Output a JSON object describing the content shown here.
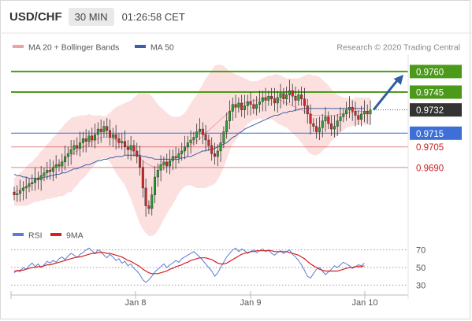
{
  "header": {
    "symbol": "USD/CHF",
    "timeframe": "30 MIN",
    "timestamp": "01:26:58 CET"
  },
  "main_legend": {
    "ma20": "MA 20 + Bollinger Bands",
    "ma50": "MA 50",
    "credit": "Research © 2020 Trading Central"
  },
  "rsi_legend": {
    "rsi": "RSI",
    "ma9": "9MA"
  },
  "colors": {
    "up": "#2ca02c",
    "down": "#d62728",
    "bollinger_fill": "#fbd5d5",
    "ma20": "#f4a0a0",
    "ma50": "#3b5ea8",
    "green_level": "#4c9a1a",
    "blue_level": "#3d6fd6",
    "red_level": "#c82020",
    "last_price": "#333333",
    "arrow": "#2e5f9e",
    "rsi": "#5b7bd5",
    "rsi_ma": "#d42020"
  },
  "chart_data": {
    "type": "candlestick",
    "price_range": [
      0.9648,
      0.9772
    ],
    "x_labels": [
      "Jan 8",
      "Jan 9",
      "Jan 10"
    ],
    "levels": [
      {
        "label": "0.9760",
        "value": 0.976,
        "kind": "resistance"
      },
      {
        "label": "0.9745",
        "value": 0.9745,
        "kind": "resistance"
      },
      {
        "label": "0.9732",
        "value": 0.9732,
        "kind": "last"
      },
      {
        "label": "0.9715",
        "value": 0.9715,
        "kind": "pivot"
      },
      {
        "label": "0.9705",
        "value": 0.9705,
        "kind": "support"
      },
      {
        "label": "0.9690",
        "value": 0.969,
        "kind": "support"
      }
    ],
    "close": [
      0.967,
      0.9671,
      0.9673,
      0.9675,
      0.9676,
      0.9678,
      0.9679,
      0.9682,
      0.9681,
      0.9684,
      0.9686,
      0.9688,
      0.9687,
      0.969,
      0.9692,
      0.9691,
      0.9694,
      0.9698,
      0.97,
      0.9703,
      0.9706,
      0.9704,
      0.9708,
      0.9711,
      0.9709,
      0.9713,
      0.971,
      0.9714,
      0.9718,
      0.9716,
      0.972,
      0.9717,
      0.9712,
      0.9714,
      0.9711,
      0.9708,
      0.9709,
      0.9705,
      0.9703,
      0.9706,
      0.9702,
      0.9698,
      0.969,
      0.9675,
      0.9662,
      0.966,
      0.967,
      0.9683,
      0.9688,
      0.9692,
      0.9694,
      0.9691,
      0.9695,
      0.9698,
      0.9697,
      0.97,
      0.9702,
      0.9705,
      0.9708,
      0.971,
      0.9712,
      0.9716,
      0.9718,
      0.9714,
      0.971,
      0.9706,
      0.97,
      0.9698,
      0.9702,
      0.9708,
      0.9716,
      0.9724,
      0.9731,
      0.9736,
      0.9734,
      0.9737,
      0.9732,
      0.9735,
      0.9738,
      0.9736,
      0.9733,
      0.9736,
      0.9738,
      0.9741,
      0.9739,
      0.9742,
      0.974,
      0.9737,
      0.9741,
      0.9744,
      0.974,
      0.9743,
      0.9746,
      0.9742,
      0.9739,
      0.9743,
      0.974,
      0.9735,
      0.9729,
      0.9722,
      0.972,
      0.9716,
      0.9719,
      0.9724,
      0.9727,
      0.9722,
      0.9718,
      0.972,
      0.9724,
      0.9727,
      0.9729,
      0.9732,
      0.9734,
      0.9731,
      0.9728,
      0.9725,
      0.9729,
      0.9731,
      0.9729,
      0.9732
    ],
    "ma20": [
      0.9672,
      0.9673,
      0.9674,
      0.9675,
      0.9676,
      0.9678,
      0.9679,
      0.9681,
      0.9682,
      0.9684,
      0.9685,
      0.9687,
      0.9688,
      0.969,
      0.9691,
      0.9693,
      0.9694,
      0.9696,
      0.9698,
      0.9699,
      0.9701,
      0.9702,
      0.9704,
      0.9705,
      0.9706,
      0.9708,
      0.9709,
      0.971,
      0.9711,
      0.9712,
      0.9712,
      0.9712,
      0.9712,
      0.9711,
      0.971,
      0.9709,
      0.9708,
      0.9707,
      0.9705,
      0.9703,
      0.9701,
      0.9699,
      0.9697,
      0.9695,
      0.9693,
      0.9692,
      0.9691,
      0.969,
      0.969,
      0.9691,
      0.9692,
      0.9693,
      0.9694,
      0.9695,
      0.9697,
      0.9699,
      0.9701,
      0.9703,
      0.9705,
      0.9707,
      0.9708,
      0.9709,
      0.9711,
      0.9713,
      0.9715,
      0.9717,
      0.9719,
      0.9721,
      0.9723,
      0.9725,
      0.9727,
      0.9729,
      0.9731,
      0.9733,
      0.9734,
      0.9735,
      0.9736,
      0.9737,
      0.9738,
      0.9738,
      0.9739,
      0.9739,
      0.974,
      0.974,
      0.9741,
      0.9741,
      0.9741,
      0.9741,
      0.974,
      0.9739,
      0.9738,
      0.9737,
      0.9736,
      0.9735,
      0.9734,
      0.9733,
      0.9732,
      0.9731,
      0.973,
      0.9729,
      0.9728,
      0.9728,
      0.9728,
      0.9728,
      0.9728,
      0.9728,
      0.9728,
      0.9728,
      0.9728,
      0.9729,
      0.9729,
      0.973,
      0.973,
      0.973,
      0.9731,
      0.9731,
      0.9731,
      0.9731,
      0.9731,
      0.9731
    ],
    "band_width": [
      0.001,
      0.0011,
      0.0012,
      0.0013,
      0.0014,
      0.0015,
      0.0015,
      0.0016,
      0.0017,
      0.0018,
      0.0019,
      0.002,
      0.0021,
      0.0022,
      0.0023,
      0.0024,
      0.0025,
      0.0026,
      0.0026,
      0.0027,
      0.0026,
      0.0025,
      0.0024,
      0.0023,
      0.0022,
      0.0021,
      0.0019,
      0.0018,
      0.0017,
      0.0016,
      0.0015,
      0.0016,
      0.0018,
      0.0021,
      0.0024,
      0.0026,
      0.0028,
      0.003,
      0.0033,
      0.0036,
      0.004,
      0.0044,
      0.0048,
      0.005,
      0.0051,
      0.0052,
      0.0051,
      0.0049,
      0.0046,
      0.0043,
      0.004,
      0.0037,
      0.0034,
      0.0032,
      0.003,
      0.0028,
      0.0027,
      0.0027,
      0.0028,
      0.003,
      0.0032,
      0.0034,
      0.0036,
      0.0038,
      0.004,
      0.0041,
      0.0042,
      0.0043,
      0.0042,
      0.004,
      0.0037,
      0.0033,
      0.0029,
      0.0026,
      0.0024,
      0.0022,
      0.002,
      0.0018,
      0.0016,
      0.0015,
      0.0014,
      0.0014,
      0.0014,
      0.0015,
      0.0015,
      0.0016,
      0.0016,
      0.0017,
      0.0018,
      0.0018,
      0.0018,
      0.0018,
      0.0019,
      0.002,
      0.0021,
      0.0022,
      0.0024,
      0.0026,
      0.0028,
      0.0029,
      0.0029,
      0.0029,
      0.0028,
      0.0026,
      0.0024,
      0.0022,
      0.0019,
      0.0017,
      0.0015,
      0.0013,
      0.0012,
      0.0011,
      0.001,
      0.001,
      0.001,
      0.001,
      0.001,
      0.001,
      0.001,
      0.001
    ],
    "ma50": [
      0.9685,
      0.9684,
      0.9684,
      0.9683,
      0.9683,
      0.9682,
      0.9682,
      0.9682,
      0.9682,
      0.9682,
      0.9683,
      0.9683,
      0.9684,
      0.9684,
      0.9685,
      0.9685,
      0.9686,
      0.9686,
      0.9687,
      0.9688,
      0.9689,
      0.9689,
      0.969,
      0.9691,
      0.9692,
      0.9692,
      0.9693,
      0.9694,
      0.9695,
      0.9695,
      0.9696,
      0.9696,
      0.9697,
      0.9697,
      0.9698,
      0.9698,
      0.9698,
      0.9699,
      0.9699,
      0.9699,
      0.9699,
      0.9699,
      0.9699,
      0.9698,
      0.9698,
      0.9697,
      0.9697,
      0.9696,
      0.9696,
      0.9696,
      0.9696,
      0.9696,
      0.9696,
      0.9696,
      0.9696,
      0.9696,
      0.9697,
      0.9697,
      0.9698,
      0.9698,
      0.9699,
      0.97,
      0.9701,
      0.9702,
      0.9702,
      0.9703,
      0.9703,
      0.9704,
      0.9705,
      0.9706,
      0.9707,
      0.9708,
      0.971,
      0.9712,
      0.9713,
      0.9715,
      0.9716,
      0.9718,
      0.9719,
      0.972,
      0.9721,
      0.9722,
      0.9723,
      0.9724,
      0.9725,
      0.9726,
      0.9727,
      0.9728,
      0.9728,
      0.9729,
      0.973,
      0.973,
      0.9731,
      0.9731,
      0.9732,
      0.9732,
      0.9733,
      0.9733,
      0.9733,
      0.9733,
      0.9733,
      0.9733,
      0.9733,
      0.9733,
      0.9733,
      0.9733,
      0.9733,
      0.9733,
      0.9733,
      0.9733,
      0.9733,
      0.9733,
      0.9733,
      0.9733,
      0.9733,
      0.9733,
      0.9733,
      0.9733
    ],
    "rsi": [
      44,
      47,
      45,
      50,
      48,
      52,
      55,
      51,
      54,
      50,
      53,
      57,
      55,
      58,
      56,
      60,
      62,
      59,
      63,
      66,
      64,
      61,
      65,
      67,
      70,
      72,
      69,
      66,
      70,
      68,
      64,
      61,
      65,
      62,
      58,
      60,
      55,
      57,
      52,
      54,
      49,
      46,
      42,
      36,
      33,
      36,
      40,
      45,
      48,
      51,
      54,
      50,
      53,
      55,
      58,
      56,
      60,
      62,
      64,
      66,
      68,
      65,
      62,
      58,
      54,
      50,
      46,
      40,
      44,
      50,
      56,
      62,
      66,
      70,
      72,
      68,
      71,
      69,
      66,
      68,
      70,
      67,
      69,
      71,
      68,
      70,
      66,
      64,
      67,
      69,
      66,
      68,
      70,
      65,
      62,
      58,
      53,
      47,
      40,
      38,
      43,
      48,
      50,
      46,
      42,
      45,
      48,
      52,
      50,
      53,
      56,
      54,
      52,
      49,
      51,
      53,
      52,
      55
    ],
    "rsi_ma": [
      46,
      46,
      47,
      47,
      48,
      49,
      50,
      50,
      51,
      51,
      52,
      53,
      53,
      54,
      55,
      56,
      57,
      58,
      59,
      60,
      61,
      62,
      62,
      63,
      64,
      65,
      66,
      66,
      67,
      67,
      67,
      66,
      66,
      65,
      64,
      63,
      62,
      60,
      58,
      57,
      55,
      53,
      51,
      48,
      46,
      44,
      43,
      43,
      43,
      44,
      45,
      46,
      48,
      49,
      51,
      52,
      53,
      55,
      56,
      58,
      59,
      60,
      61,
      61,
      61,
      60,
      59,
      57,
      55,
      54,
      54,
      55,
      57,
      59,
      61,
      63,
      65,
      66,
      67,
      68,
      68,
      69,
      69,
      69,
      69,
      69,
      69,
      68,
      68,
      68,
      68,
      68,
      67,
      66,
      65,
      64,
      62,
      60,
      57,
      54,
      52,
      50,
      48,
      47,
      46,
      46,
      46,
      46,
      46,
      47,
      48,
      49,
      50,
      50,
      51,
      51,
      51,
      52
    ],
    "rsi_levels": [
      70,
      50,
      30
    ]
  }
}
